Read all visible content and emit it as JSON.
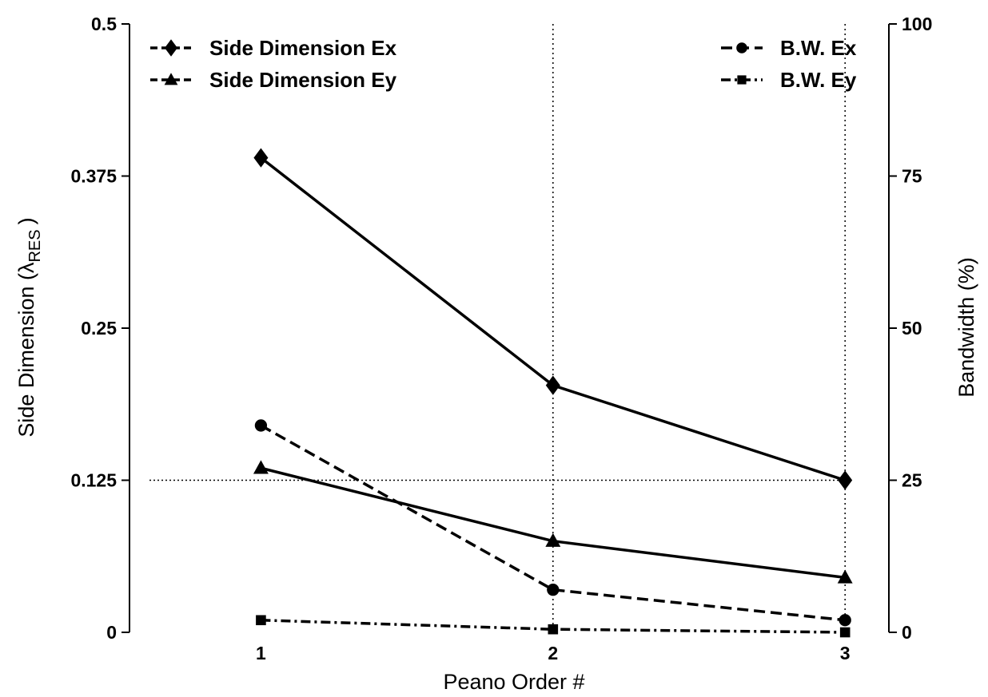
{
  "chart_data": {
    "type": "line",
    "x": [
      1,
      2,
      3
    ],
    "xlabel": "Peano Order #",
    "ylabel": "Side Dimension (",
    "ylabel_lambda": "λ",
    "ylabel_sub": "RES",
    "ylabel_close": ")",
    "y2label": "Bandwidth (%)",
    "xlim": [
      0.55,
      3.15
    ],
    "ylim": [
      0,
      0.5
    ],
    "y2lim": [
      0,
      100
    ],
    "xticks": [
      "1",
      "2",
      "3"
    ],
    "yticks": [
      "0",
      "0.125",
      "0.25",
      "0.375",
      "0.5"
    ],
    "y2ticks": [
      "0",
      "25",
      "50",
      "75",
      "100"
    ],
    "grid": "dotted lines at x = 2 and x = 3, and at y = 0.125",
    "series": [
      {
        "name": "Side Dimension Ex",
        "axis": "left",
        "marker": "diamond",
        "line": "solid",
        "values": [
          0.39,
          0.203,
          0.125
        ]
      },
      {
        "name": "Side Dimension Ey",
        "axis": "left",
        "marker": "triangle",
        "line": "solid",
        "values": [
          0.135,
          0.075,
          0.045
        ]
      },
      {
        "name": "B.W. Ex",
        "axis": "right",
        "marker": "circle",
        "line": "dashed",
        "values": [
          34,
          7,
          2
        ]
      },
      {
        "name": "B.W. Ey",
        "axis": "right",
        "marker": "square",
        "line": "dash-dot",
        "values": [
          2,
          0.5,
          0
        ]
      }
    ],
    "legend": {
      "left": [
        "Side Dimension Ex",
        "Side Dimension Ey"
      ],
      "right": [
        "B.W. Ex",
        "B.W. Ey"
      ],
      "placement": "top-left and top-right"
    }
  }
}
